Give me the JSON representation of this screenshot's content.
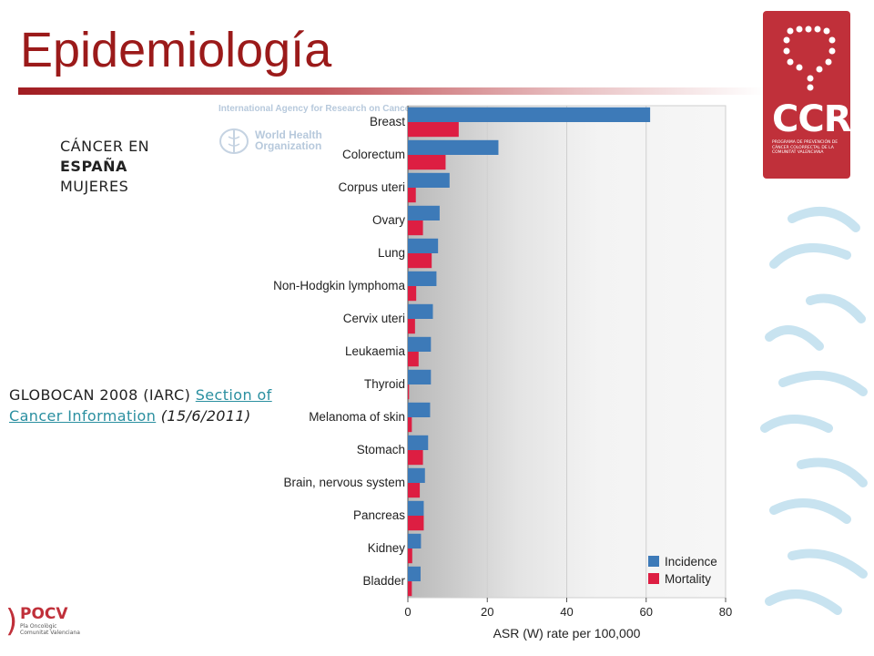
{
  "slide": {
    "title": "Epidemiología",
    "subtitle_line1": "CÁNCER EN",
    "subtitle_line2": "ESPAÑA",
    "subtitle_line3": "MUJERES",
    "citation_prefix": "GLOBOCAN 2008 (IARC)",
    "citation_link": "Section of Cancer Information",
    "citation_date": "(15/6/2011)"
  },
  "logos": {
    "iarc_header": "International Agency for Research on Cancer",
    "who_line1": "World Health",
    "who_line2": "Organization",
    "ccr_letters": "CCR",
    "ccr_subtext": "PROGRAMA DE PREVENCIÓN DE CÁNCER COLORRECTAL DE LA COMUNITAT VALENCIANA",
    "pocv_name": "POCV",
    "pocv_subtext": "Pla Oncològic Comunitat Valenciana",
    "brand_red": "#c0303a"
  },
  "chart_data": {
    "type": "bar",
    "orientation": "horizontal",
    "categories": [
      "Breast",
      "Colorectum",
      "Corpus uteri",
      "Ovary",
      "Lung",
      "Non-Hodgkin lymphoma",
      "Cervix uteri",
      "Leukaemia",
      "Thyroid",
      "Melanoma of skin",
      "Stomach",
      "Brain, nervous system",
      "Pancreas",
      "Kidney",
      "Bladder"
    ],
    "series": [
      {
        "name": "Incidence",
        "color": "#3d7ab8",
        "values": [
          61.0,
          22.8,
          10.5,
          8.0,
          7.6,
          7.2,
          6.3,
          5.8,
          5.8,
          5.6,
          5.1,
          4.3,
          4.0,
          3.3,
          3.2
        ]
      },
      {
        "name": "Mortality",
        "color": "#dd1e42",
        "values": [
          12.8,
          9.5,
          2.0,
          3.8,
          6.0,
          2.1,
          1.8,
          2.7,
          0.3,
          1.0,
          3.8,
          3.0,
          4.0,
          1.1,
          1.0
        ]
      }
    ],
    "xlabel": "ASR (W) rate per 100,000",
    "xlim": [
      0,
      80
    ],
    "xticks": [
      "0",
      "20",
      "40",
      "60",
      "80"
    ],
    "grid": true,
    "legend_position": "bottom-right"
  }
}
